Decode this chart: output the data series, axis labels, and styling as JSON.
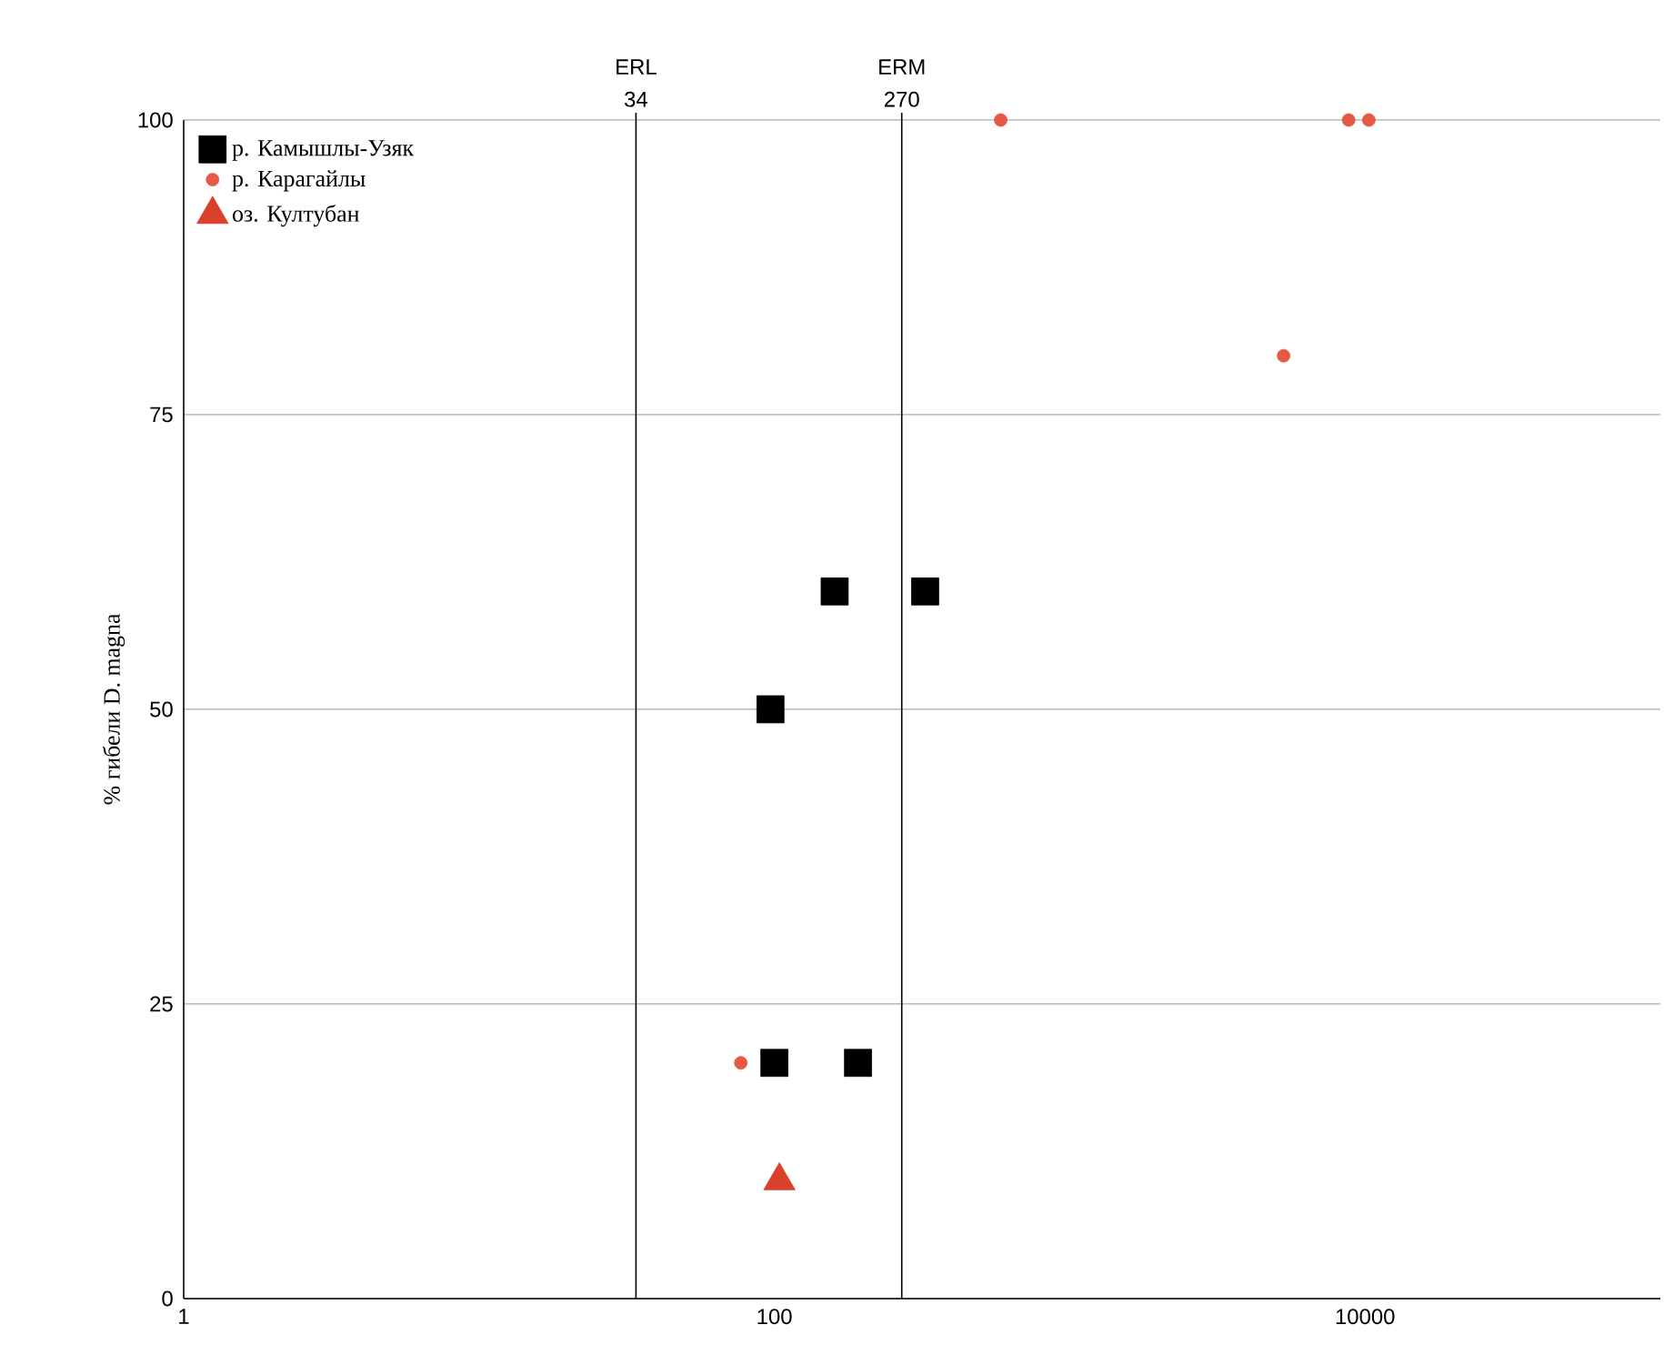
{
  "chart_data": {
    "type": "scatter",
    "ylabel": "% гибели D. magna",
    "log": "x",
    "xlim": [
      1,
      100000
    ],
    "ylim": [
      0,
      100
    ],
    "xticks": [
      1,
      100,
      10000
    ],
    "annotations": [
      {
        "text": "34",
        "x": 34,
        "y": 100
      },
      {
        "text": "270",
        "x": 270,
        "y": 100
      }
    ],
    "yticks": [
      0,
      25,
      50,
      75,
      100
    ],
    "grid": "y",
    "legend": "top left",
    "ref_lines": [
      {
        "axis": "x",
        "value": 34,
        "label": "ERL",
        "color": "#000000"
      },
      {
        "axis": "x",
        "value": 270,
        "label": "ERM",
        "color": "#000000"
      }
    ],
    "series": [
      {
        "name": "р. Камышлы-Узяк",
        "color": "#000000",
        "marker": "square",
        "x": [
          160,
          324,
          97,
          100,
          192
        ],
        "values": [
          60,
          60,
          50,
          20,
          20
        ]
      },
      {
        "name": "р. Карагайлы",
        "color": "#e45a44",
        "marker": "circle",
        "x": [
          584,
          8800,
          10300,
          5300,
          77
        ],
        "values": [
          100,
          100,
          100,
          80,
          20
        ]
      },
      {
        "name": "оз. Култубан",
        "color": "#d9412b",
        "marker": "triangle",
        "x": [
          104
        ],
        "values": [
          10
        ]
      }
    ]
  }
}
